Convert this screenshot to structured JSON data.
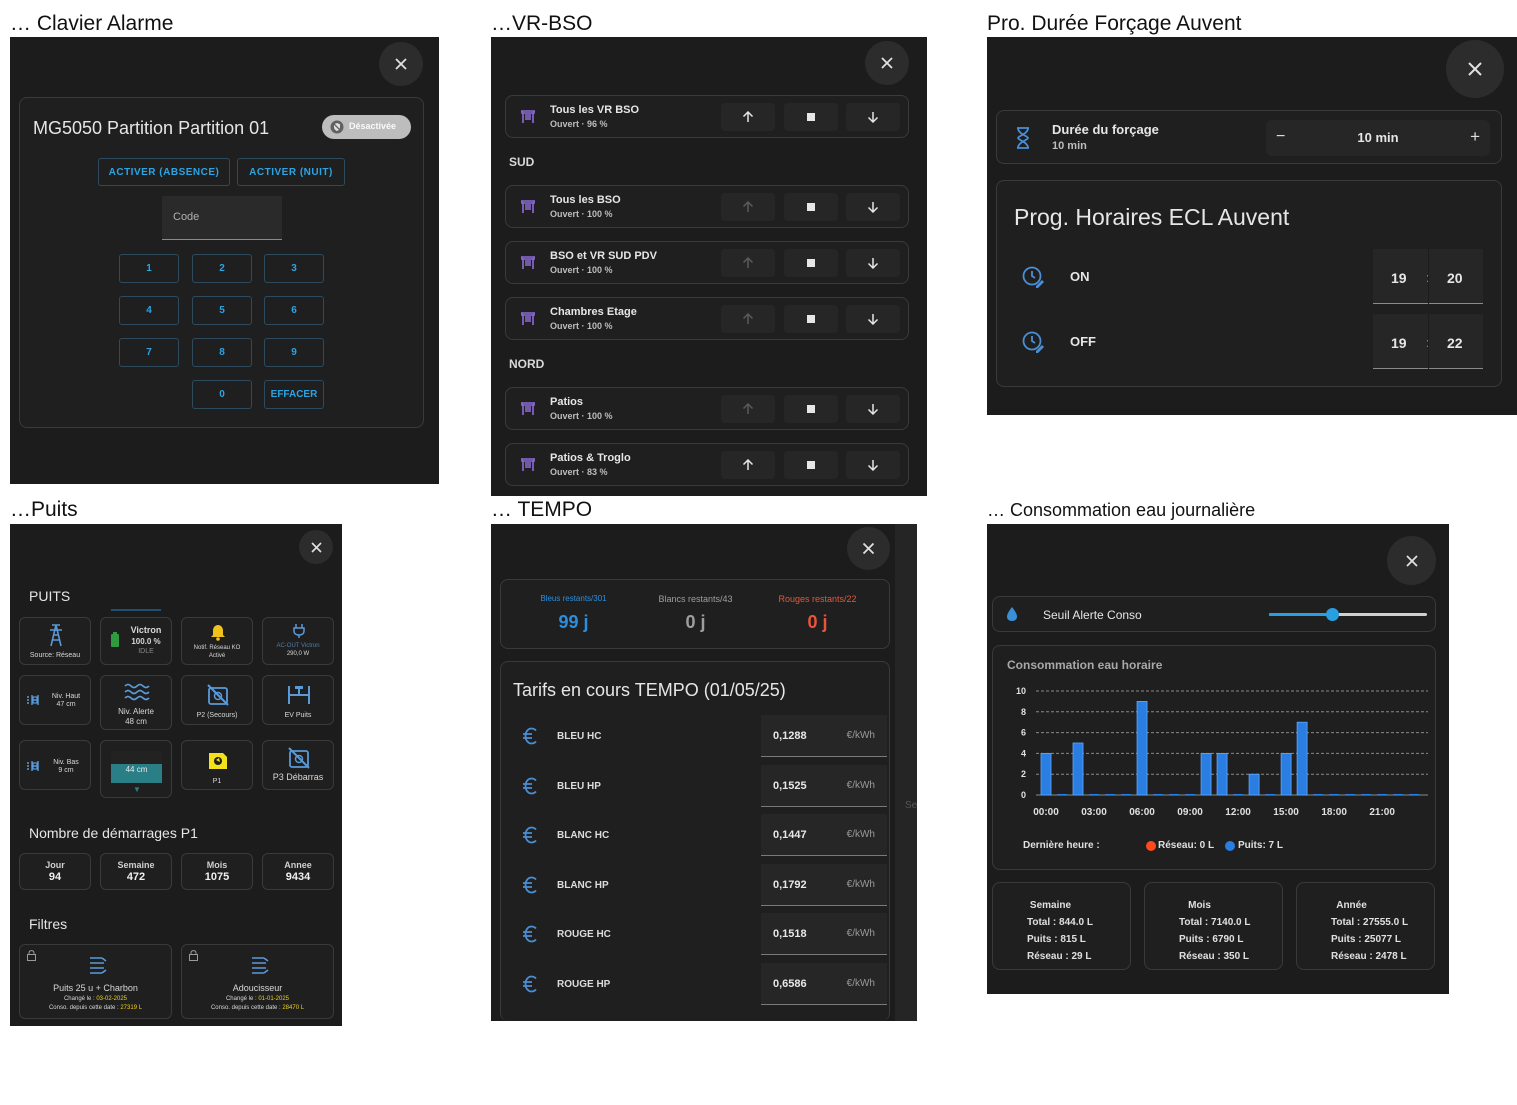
{
  "captions": {
    "alarm": "… Clavier Alarme",
    "vr": "…VR-BSO",
    "auvent": "Pro. Durée Forçage Auvent",
    "puits": "…Puits",
    "tempo": "… TEMPO",
    "conso": "… Consommation eau journalière"
  },
  "alarm": {
    "title": "MG5050 Partition Partition 01",
    "status_badge": "Désactivée",
    "arm_away": "ACTIVER (ABSENCE)",
    "arm_night": "ACTIVER (NUIT)",
    "code_placeholder": "Code",
    "keys": [
      "1",
      "2",
      "3",
      "4",
      "5",
      "6",
      "7",
      "8",
      "9",
      "0"
    ],
    "clear": "EFFACER"
  },
  "vr": {
    "sections": {
      "sud": "SUD",
      "nord": "NORD"
    },
    "rows": [
      {
        "name": "Tous les VR BSO",
        "state": "Ouvert · 96 %",
        "up_enabled": true
      },
      {
        "name": "Tous les BSO",
        "state": "Ouvert · 100 %",
        "up_enabled": false
      },
      {
        "name": "BSO et VR SUD PDV",
        "state": "Ouvert · 100 %",
        "up_enabled": false
      },
      {
        "name": "Chambres Etage",
        "state": "Ouvert · 100 %",
        "up_enabled": false
      },
      {
        "name": "Patios",
        "state": "Ouvert · 100 %",
        "up_enabled": false
      },
      {
        "name": "Patios & Troglo",
        "state": "Ouvert · 83 %",
        "up_enabled": true
      }
    ]
  },
  "auvent": {
    "duration_label": "Durée du forçage",
    "duration_sub": "10 min",
    "duration_value": "10 min",
    "minus": "−",
    "plus": "+",
    "prog_title": "Prog. Horaires ECL Auvent",
    "on_label": "ON",
    "on_h": "19",
    "on_m": "20",
    "off_label": "OFF",
    "off_h": "19",
    "off_m": "22",
    "sep": ":"
  },
  "puits": {
    "title": "PUITS",
    "tiles": {
      "source": "Source: Réseau",
      "victron_name": "Victron",
      "victron_pct": "100.0 %",
      "victron_state": "IDLE",
      "notif": "Notif. Réseau KO",
      "notif_state": "Activé",
      "acout": "AC-OUT Victron",
      "acout_val": "290,0 W",
      "niv_haut": "Niv. Haut",
      "niv_haut_val": "47 cm",
      "niv_alerte": "Niv. Alerte",
      "niv_alerte_val": "48 cm",
      "p2": "P2 (Secours)",
      "ev": "EV Puits",
      "niv_bas": "Niv. Bas",
      "niv_bas_val": "9 cm",
      "level": "44 cm",
      "p1": "P1",
      "p3": "P3 Débarras"
    },
    "starts_title": "Nombre de démarrages P1",
    "stats": [
      {
        "label": "Jour",
        "value": "94"
      },
      {
        "label": "Semaine",
        "value": "472"
      },
      {
        "label": "Mois",
        "value": "1075"
      },
      {
        "label": "Annee",
        "value": "9434"
      }
    ],
    "filters_title": "Filtres",
    "filters": [
      {
        "name": "Puits 25 u + Charbon",
        "changed_label": "Changé le : ",
        "changed": "03-02-2025",
        "conso_label": "Conso. depuis cette date : ",
        "conso": "27319 L"
      },
      {
        "name": "Adoucisseur",
        "changed_label": "Changé le : ",
        "changed": "01-01-2025",
        "conso_label": "Conso. depuis cette date : ",
        "conso": "28470 L"
      }
    ]
  },
  "tempo": {
    "blue_label": "Bleus restants/301",
    "blue_value": "99 j",
    "white_label": "Blancs restants/43",
    "white_value": "0 j",
    "red_label": "Rouges restants/22",
    "red_value": "0 j",
    "tarifs_title": "Tarifs en cours TEMPO (01/05/25)",
    "unit": "€/kWh",
    "tarifs": [
      {
        "name": "BLEU HC",
        "value": "0,1288"
      },
      {
        "name": "BLEU HP",
        "value": "0,1525"
      },
      {
        "name": "BLANC HC",
        "value": "0,1447"
      },
      {
        "name": "BLANC HP",
        "value": "0,1792"
      },
      {
        "name": "ROUGE HC",
        "value": "0,1518"
      },
      {
        "name": "ROUGE HP",
        "value": "0,6586"
      }
    ],
    "colors": {
      "blue": "#2a8fe0",
      "white": "#9e9e9e",
      "red": "#e8553a"
    }
  },
  "conso": {
    "slider_label": "Seuil Alerte Conso",
    "slider_fraction": 0.4,
    "chart_title": "Consommation eau horaire",
    "last_hour_label": "Dernière heure :",
    "legend_reseau": "Réseau: 0 L",
    "legend_puits": "Puits: 7 L",
    "stats": [
      {
        "title": "Semaine",
        "total": "Total : 844.0 L",
        "puits": "Puits : 815 L",
        "reseau": "Réseau : 29 L"
      },
      {
        "title": "Mois",
        "total": "Total : 7140.0 L",
        "puits": "Puits : 6790 L",
        "reseau": "Réseau : 350 L"
      },
      {
        "title": "Année",
        "total": "Total : 27555.0 L",
        "puits": "Puits : 25077 L",
        "reseau": "Réseau : 2478 L"
      }
    ]
  },
  "chart_data": {
    "type": "bar",
    "title": "Consommation eau horaire",
    "x": [
      0,
      1,
      2,
      3,
      4,
      5,
      6,
      7,
      8,
      9,
      10,
      11,
      12,
      13,
      14,
      15,
      16,
      17,
      18,
      19,
      20,
      21,
      22,
      23
    ],
    "x_tick_labels": [
      "00:00",
      "03:00",
      "06:00",
      "09:00",
      "12:00",
      "15:00",
      "18:00",
      "21:00"
    ],
    "x_tick_positions": [
      0,
      3,
      6,
      9,
      12,
      15,
      18,
      21
    ],
    "ylim": [
      0,
      10
    ],
    "y_ticks": [
      0,
      2,
      4,
      6,
      8,
      10
    ],
    "grid": true,
    "series": [
      {
        "name": "Puits",
        "color": "#2a7de1",
        "values": [
          4,
          0,
          5,
          0,
          0,
          0,
          9,
          0,
          0,
          0,
          4,
          4,
          0,
          2,
          0,
          4,
          7,
          0,
          0,
          0,
          0,
          0,
          0,
          0
        ]
      },
      {
        "name": "Réseau",
        "color": "#ff4a1c",
        "values": [
          0,
          0,
          0,
          0,
          0,
          0,
          0,
          0,
          0,
          0,
          0,
          0,
          0,
          0,
          0,
          0,
          0,
          0,
          0,
          0,
          0,
          0,
          0,
          0
        ]
      }
    ]
  }
}
